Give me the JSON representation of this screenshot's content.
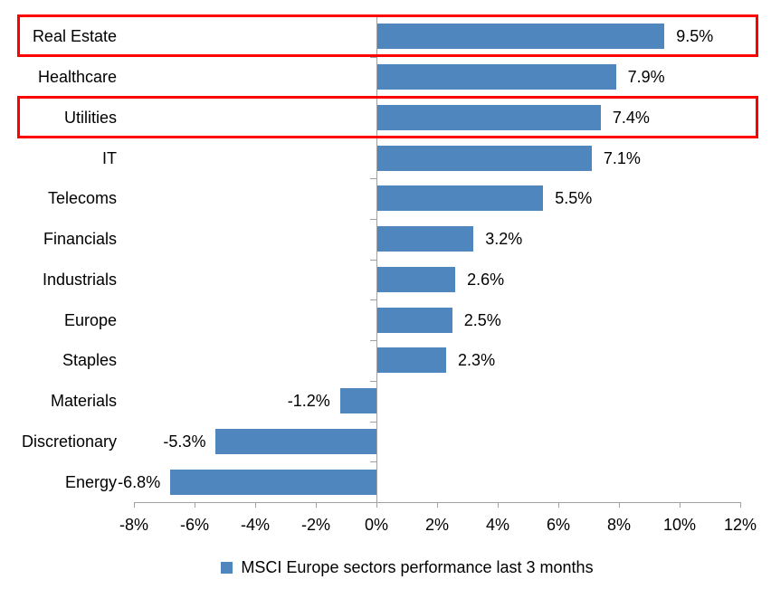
{
  "chart_data": {
    "type": "bar",
    "orientation": "horizontal",
    "title": "",
    "categories": [
      "Real Estate",
      "Healthcare",
      "Utilities",
      "IT",
      "Telecoms",
      "Financials",
      "Industrials",
      "Europe",
      "Staples",
      "Materials",
      "Discretionary",
      "Energy"
    ],
    "values": [
      9.5,
      7.9,
      7.4,
      7.1,
      5.5,
      3.2,
      2.6,
      2.5,
      2.3,
      -1.2,
      -5.3,
      -6.8
    ],
    "value_labels": [
      "9.5%",
      "7.9%",
      "7.4%",
      "7.1%",
      "5.5%",
      "3.2%",
      "2.6%",
      "2.5%",
      "2.3%",
      "-1.2%",
      "-5.3%",
      "-6.8%"
    ],
    "xlim": [
      -8,
      12
    ],
    "x_tick_values": [
      -8,
      -6,
      -4,
      -2,
      0,
      2,
      4,
      6,
      8,
      10,
      12
    ],
    "x_tick_labels": [
      "-8%",
      "-6%",
      "-4%",
      "-2%",
      "0%",
      "2%",
      "4%",
      "6%",
      "8%",
      "10%",
      "12%"
    ],
    "grid": false,
    "legend": "MSCI Europe sectors performance last 3 months",
    "legend_position": "bottom",
    "bar_color": "#4e86bd",
    "axis_color": "#a0a0a0",
    "text_color": "#000000",
    "highlight_color": "#ff0000",
    "highlighted_categories": [
      "Real Estate",
      "Utilities"
    ]
  }
}
